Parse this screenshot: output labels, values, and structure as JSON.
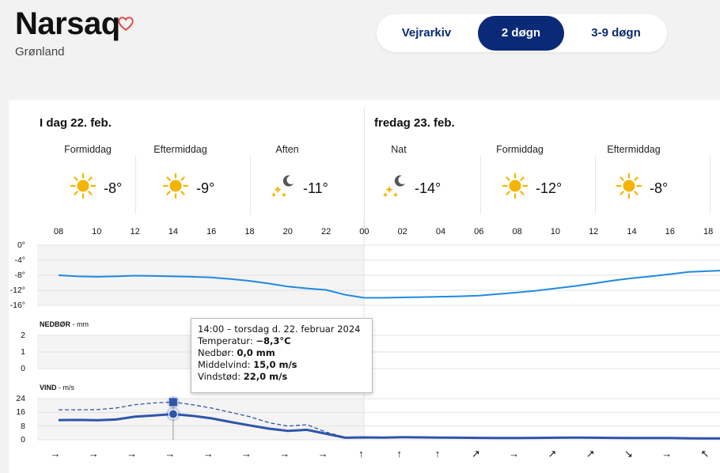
{
  "header": {
    "city": "Narsaq",
    "region": "Grønland",
    "tabs": [
      "Vejrarkiv",
      "2 døgn",
      "3-9 døgn"
    ],
    "active_tab": "2 døgn"
  },
  "days": [
    {
      "label": "I dag 22. feb."
    },
    {
      "label": "fredag 23. feb."
    }
  ],
  "periods": [
    {
      "name": "Formiddag",
      "icon": "sun-icon",
      "temp": "-8°"
    },
    {
      "name": "Eftermiddag",
      "icon": "sun-icon",
      "temp": "-9°"
    },
    {
      "name": "Aften",
      "icon": "moon-stars-icon",
      "temp": "-11°"
    },
    {
      "name": "Nat",
      "icon": "moon-stars-icon",
      "temp": "-14°"
    },
    {
      "name": "Formiddag",
      "icon": "sun-icon",
      "temp": "-12°"
    },
    {
      "name": "Eftermiddag",
      "icon": "sun-icon",
      "temp": "-8°"
    }
  ],
  "hours": [
    "08",
    "10",
    "12",
    "14",
    "16",
    "18",
    "20",
    "22",
    "00",
    "02",
    "04",
    "06",
    "08",
    "10",
    "12",
    "14",
    "16",
    "18"
  ],
  "temp_axis": [
    "0°",
    "-4°",
    "-8°",
    "-12°",
    "-16°"
  ],
  "precip_label": "NEDBØR",
  "precip_unit": "mm",
  "precip_axis": [
    "2",
    "1",
    "0"
  ],
  "wind_label": "VIND",
  "wind_unit": "m/s",
  "wind_axis": [
    "24",
    "16",
    "8",
    "0"
  ],
  "tooltip": {
    "title": "14:00 – torsdag d. 22. februar 2024",
    "temp_label": "Temperatur:",
    "temp_value": "−8,3°C",
    "precip_label": "Nedbør:",
    "precip_value": "0,0 mm",
    "wind_label": "Middelvind:",
    "wind_value": "15,0 m/s",
    "gust_label": "Vindstød:",
    "gust_value": "22,0 m/s"
  },
  "wind_arrows": [
    "→",
    "→",
    "→",
    "→",
    "→",
    "→",
    "→",
    "→",
    "↑",
    "↑",
    "↑",
    "↗",
    "→",
    "↗",
    "↗",
    "↘",
    "→",
    "↖"
  ],
  "colors": {
    "accent": "#0a2a78",
    "temp_line": "#1f8ae0",
    "wind_line": "#2f55a8",
    "heart": "#e0453a",
    "sun": "#f4b400"
  },
  "chart_data": [
    {
      "type": "line",
      "title": "",
      "x": [
        "08",
        "09",
        "10",
        "11",
        "12",
        "13",
        "14",
        "15",
        "16",
        "17",
        "18",
        "19",
        "20",
        "21",
        "22",
        "23",
        "00",
        "01",
        "02",
        "03",
        "04",
        "05",
        "06",
        "07",
        "08",
        "09",
        "10",
        "11",
        "12",
        "13",
        "14",
        "15",
        "16",
        "17",
        "18",
        "19"
      ],
      "series": [
        {
          "values": [
            -8.0,
            -8.3,
            -8.4,
            -8.3,
            -8.1,
            -8.2,
            -8.3,
            -8.4,
            -8.6,
            -9.0,
            -9.5,
            -10.2,
            -11.0,
            -11.5,
            -11.9,
            -13.2,
            -14.0,
            -14.0,
            -13.9,
            -13.8,
            -13.7,
            -13.6,
            -13.4,
            -13.0,
            -12.6,
            -12.1,
            -11.5,
            -10.9,
            -10.2,
            -9.4,
            -8.8,
            -8.3,
            -7.7,
            -7.1,
            -6.9,
            -6.7
          ]
        }
      ],
      "ylim": [
        -16,
        0
      ]
    },
    {
      "type": "bar",
      "title": "NEDBØR - mm",
      "x": [
        "08",
        "10",
        "12",
        "14",
        "16",
        "18",
        "20",
        "22",
        "00",
        "02",
        "04",
        "06",
        "08",
        "10",
        "12",
        "14",
        "16",
        "18"
      ],
      "values": [
        0,
        0,
        0,
        0,
        0,
        0,
        0,
        0,
        0,
        0,
        0,
        0,
        0,
        0,
        0,
        0,
        0,
        0
      ],
      "ylim": [
        0,
        2
      ]
    },
    {
      "type": "line",
      "title": "VIND - m/s",
      "x": [
        "08",
        "09",
        "10",
        "11",
        "12",
        "13",
        "14",
        "15",
        "16",
        "17",
        "18",
        "19",
        "20",
        "21",
        "22",
        "23",
        "00",
        "01",
        "02",
        "03",
        "04",
        "05",
        "06",
        "07",
        "08",
        "09",
        "10",
        "11",
        "12",
        "13",
        "14",
        "15",
        "16",
        "17",
        "18",
        "19"
      ],
      "series": [
        {
          "name": "Middelvind",
          "values": [
            11.5,
            11.6,
            11.4,
            11.8,
            13.5,
            14.2,
            15.0,
            14.0,
            12.5,
            10.4,
            8.4,
            6.5,
            5.2,
            5.8,
            3.5,
            1.2,
            1.4,
            1.3,
            1.5,
            1.4,
            1.3,
            1.2,
            1.1,
            1.0,
            1.0,
            1.1,
            1.2,
            1.3,
            1.2,
            1.1,
            1.0,
            1.0,
            1.0,
            0.9,
            0.8,
            0.8
          ]
        },
        {
          "name": "Vindstød",
          "values": [
            17.5,
            17.5,
            17.6,
            18.5,
            20.5,
            21.5,
            22.0,
            20.5,
            18.5,
            16.0,
            13.5,
            10.0,
            8.0,
            8.8,
            4.5,
            1.5,
            1.6,
            1.5,
            1.6,
            1.5,
            1.4,
            1.3,
            1.2,
            1.1,
            1.1,
            1.2,
            1.3,
            1.4,
            1.3,
            1.2,
            1.1,
            1.1,
            1.1,
            1.0,
            0.9,
            0.9
          ]
        }
      ],
      "ylim": [
        0,
        24
      ]
    }
  ]
}
